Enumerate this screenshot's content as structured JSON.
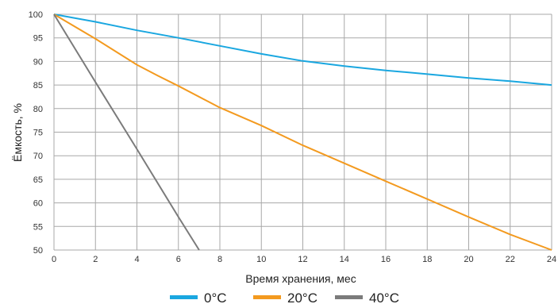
{
  "chart_data": {
    "type": "line",
    "xlabel": "Время хранения, мес",
    "ylabel": "Ёмкость, %",
    "xlim": [
      0,
      24
    ],
    "ylim": [
      50,
      100
    ],
    "x_ticks": [
      0,
      2,
      4,
      6,
      8,
      10,
      12,
      14,
      16,
      18,
      20,
      22,
      24
    ],
    "y_ticks": [
      50,
      55,
      60,
      65,
      70,
      75,
      80,
      85,
      90,
      95,
      100
    ],
    "grid": true,
    "legend_position": "bottom",
    "series": [
      {
        "name": "0°C",
        "color": "#1aa7e0",
        "points": [
          [
            0,
            100
          ],
          [
            2,
            98.4
          ],
          [
            4,
            96.6
          ],
          [
            6,
            95
          ],
          [
            8,
            93.3
          ],
          [
            10,
            91.6
          ],
          [
            12,
            90.1
          ],
          [
            14,
            89
          ],
          [
            16,
            88.1
          ],
          [
            18,
            87.3
          ],
          [
            20,
            86.5
          ],
          [
            22,
            85.8
          ],
          [
            24,
            85
          ]
        ]
      },
      {
        "name": "20°C",
        "color": "#f39a1f",
        "points": [
          [
            0,
            100
          ],
          [
            2,
            94.8
          ],
          [
            4,
            89.3
          ],
          [
            5,
            87
          ],
          [
            6,
            84.8
          ],
          [
            8,
            80.2
          ],
          [
            10,
            76.4
          ],
          [
            12,
            72.2
          ],
          [
            14,
            68.4
          ],
          [
            16,
            64.6
          ],
          [
            18,
            60.8
          ],
          [
            20,
            57
          ],
          [
            22,
            53.3
          ],
          [
            24,
            50
          ]
        ]
      },
      {
        "name": "40°C",
        "color": "#7b7b7b",
        "points": [
          [
            0,
            100
          ],
          [
            2,
            85.6
          ],
          [
            4,
            71.4
          ],
          [
            6,
            57
          ],
          [
            7,
            50
          ]
        ]
      }
    ]
  }
}
